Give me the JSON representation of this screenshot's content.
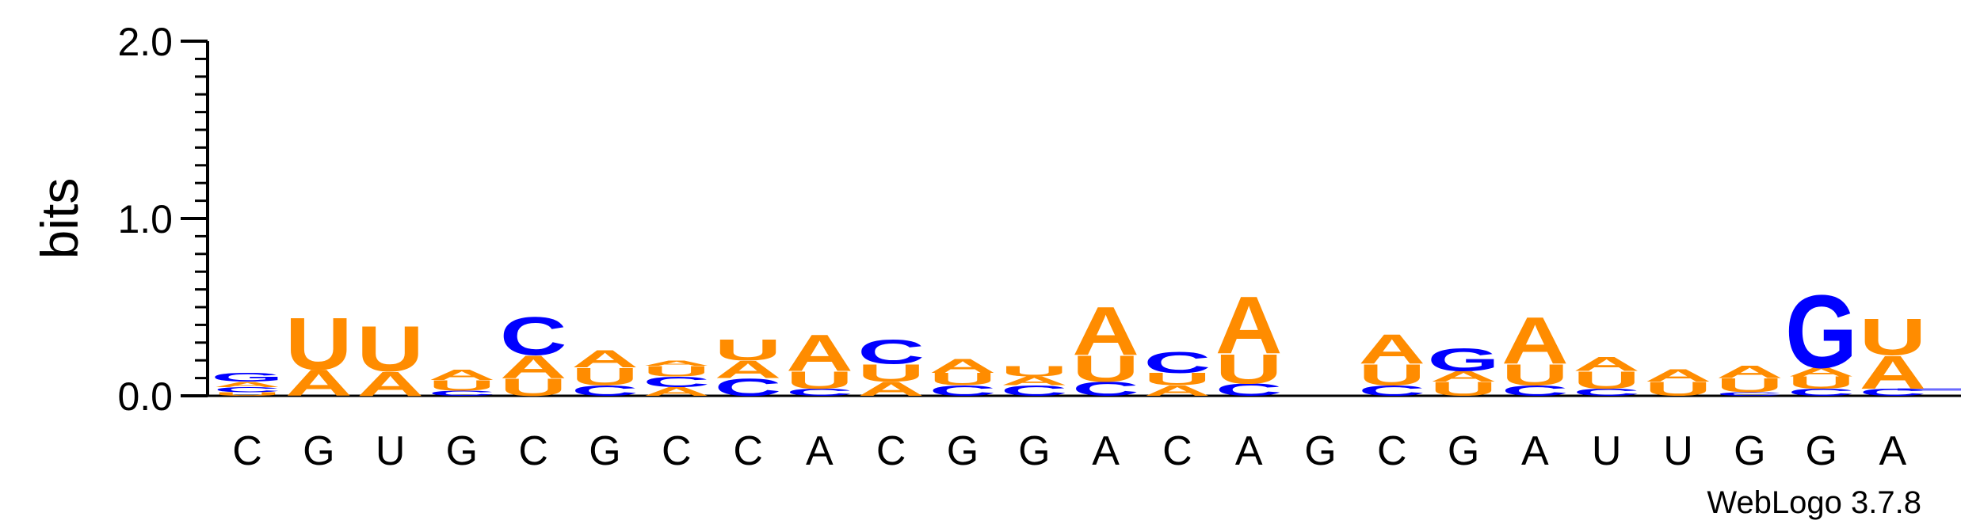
{
  "chart_data": {
    "type": "sequence-logo",
    "ylabel": "bits",
    "ylim": [
      0,
      2.0
    ],
    "yticks": [
      "0.0",
      "1.0",
      "2.0"
    ],
    "credit": "WebLogo 3.7.8",
    "colors": {
      "A": "#ff8c00",
      "U": "#ff8c00",
      "C": "#0000ff",
      "G": "#0000ff"
    },
    "positions": [
      {
        "label": "C",
        "stack": [
          [
            "U",
            0.02
          ],
          [
            "C",
            0.03
          ],
          [
            "A",
            0.03
          ],
          [
            "G",
            0.05
          ]
        ]
      },
      {
        "label": "G",
        "stack": [
          [
            "A",
            0.15
          ],
          [
            "U",
            0.3
          ]
        ]
      },
      {
        "label": "U",
        "stack": [
          [
            "A",
            0.14
          ],
          [
            "U",
            0.26
          ]
        ]
      },
      {
        "label": "G",
        "stack": [
          [
            "C",
            0.03
          ],
          [
            "U",
            0.06
          ],
          [
            "A",
            0.06
          ]
        ]
      },
      {
        "label": "C",
        "stack": [
          [
            "U",
            0.1
          ],
          [
            "A",
            0.13
          ],
          [
            "C",
            0.22
          ]
        ]
      },
      {
        "label": "G",
        "stack": [
          [
            "C",
            0.06
          ],
          [
            "U",
            0.1
          ],
          [
            "A",
            0.1
          ]
        ]
      },
      {
        "label": "C",
        "stack": [
          [
            "A",
            0.05
          ],
          [
            "C",
            0.06
          ],
          [
            "U",
            0.06
          ],
          [
            "A",
            0.03
          ]
        ]
      },
      {
        "label": "C",
        "stack": [
          [
            "C",
            0.1
          ],
          [
            "A",
            0.1
          ],
          [
            "U",
            0.12
          ]
        ]
      },
      {
        "label": "A",
        "stack": [
          [
            "C",
            0.04
          ],
          [
            "U",
            0.1
          ],
          [
            "A",
            0.21
          ]
        ]
      },
      {
        "label": "C",
        "stack": [
          [
            "A",
            0.08
          ],
          [
            "U",
            0.1
          ],
          [
            "C",
            0.14
          ]
        ]
      },
      {
        "label": "G",
        "stack": [
          [
            "C",
            0.06
          ],
          [
            "U",
            0.07
          ],
          [
            "A",
            0.08
          ]
        ]
      },
      {
        "label": "G",
        "stack": [
          [
            "C",
            0.06
          ],
          [
            "A",
            0.05
          ],
          [
            "U",
            0.06
          ]
        ]
      },
      {
        "label": "A",
        "stack": [
          [
            "C",
            0.08
          ],
          [
            "U",
            0.15
          ],
          [
            "A",
            0.28
          ]
        ]
      },
      {
        "label": "C",
        "stack": [
          [
            "A",
            0.06
          ],
          [
            "U",
            0.07
          ],
          [
            "C",
            0.12
          ]
        ]
      },
      {
        "label": "A",
        "stack": [
          [
            "C",
            0.07
          ],
          [
            "U",
            0.17
          ],
          [
            "A",
            0.33
          ]
        ]
      },
      {
        "label": "G",
        "stack": []
      },
      {
        "label": "C",
        "stack": [
          [
            "C",
            0.06
          ],
          [
            "U",
            0.12
          ],
          [
            "A",
            0.17
          ]
        ]
      },
      {
        "label": "G",
        "stack": [
          [
            "U",
            0.08
          ],
          [
            "A",
            0.06
          ],
          [
            "G",
            0.13
          ]
        ]
      },
      {
        "label": "A",
        "stack": [
          [
            "C",
            0.06
          ],
          [
            "U",
            0.12
          ],
          [
            "A",
            0.27
          ]
        ]
      },
      {
        "label": "U",
        "stack": [
          [
            "C",
            0.04
          ],
          [
            "U",
            0.1
          ],
          [
            "A",
            0.08
          ]
        ]
      },
      {
        "label": "U",
        "stack": [
          [
            "U",
            0.08
          ],
          [
            "A",
            0.07
          ]
        ]
      },
      {
        "label": "G",
        "stack": [
          [
            "C",
            0.02
          ],
          [
            "U",
            0.08
          ],
          [
            "A",
            0.07
          ]
        ]
      },
      {
        "label": "G",
        "stack": [
          [
            "C",
            0.04
          ],
          [
            "U",
            0.07
          ],
          [
            "A",
            0.05
          ],
          [
            "G",
            0.42
          ]
        ]
      },
      {
        "label": "A",
        "stack": [
          [
            "C",
            0.04
          ],
          [
            "A",
            0.19
          ],
          [
            "U",
            0.21
          ]
        ]
      }
    ]
  }
}
